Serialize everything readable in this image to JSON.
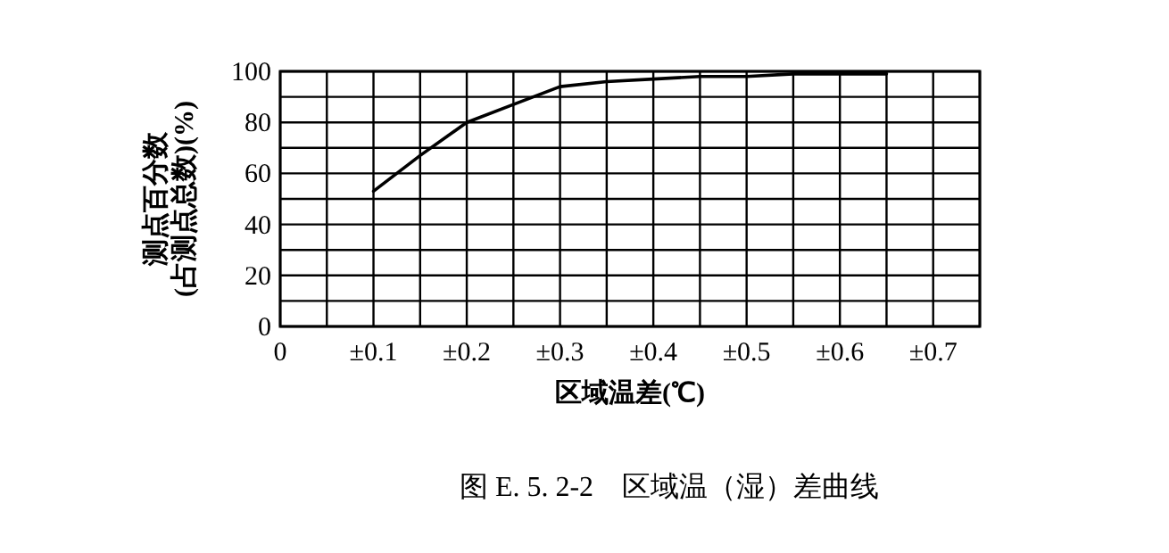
{
  "chart_data": {
    "type": "line",
    "xlabel": "区域温差(℃)",
    "ylabel": "测点百分数\n(占测点总数)(%)",
    "annotations": [
      "图 E. 5. 2-2　区域温（湿）差曲线"
    ],
    "xlim": [
      0,
      0.75
    ],
    "ylim": [
      0,
      100
    ],
    "xticks": [
      0,
      {
        "value": 0.05,
        "label": null
      },
      {
        "value": 0.1,
        "label": "±0.1"
      },
      {
        "value": 0.15,
        "label": null
      },
      {
        "value": 0.2,
        "label": "±0.2"
      },
      {
        "value": 0.25,
        "label": null
      },
      {
        "value": 0.3,
        "label": "±0.3"
      },
      {
        "value": 0.35,
        "label": null
      },
      {
        "value": 0.4,
        "label": "±0.4"
      },
      {
        "value": 0.45,
        "label": null
      },
      {
        "value": 0.5,
        "label": "±0.5"
      },
      {
        "value": 0.55,
        "label": null
      },
      {
        "value": 0.6,
        "label": "±0.6"
      },
      {
        "value": 0.65,
        "label": null
      },
      {
        "value": 0.7,
        "label": "±0.7"
      },
      {
        "value": 0.75,
        "label": null
      }
    ],
    "yticks": [
      0,
      {
        "value": 10,
        "label": null
      },
      20,
      {
        "value": 30,
        "label": null
      },
      40,
      {
        "value": 50,
        "label": null
      },
      60,
      {
        "value": 70,
        "label": null
      },
      80,
      {
        "value": 90,
        "label": null
      },
      100
    ],
    "grid": true,
    "series": [
      {
        "color": "#000000",
        "x": [
          0.1,
          0.15,
          0.2,
          0.25,
          0.3,
          0.35,
          0.4,
          0.45,
          0.5,
          0.55,
          0.6,
          0.65
        ],
        "values": [
          53,
          67,
          80,
          87,
          94,
          96,
          97,
          98,
          98,
          99,
          99,
          99
        ]
      }
    ]
  }
}
